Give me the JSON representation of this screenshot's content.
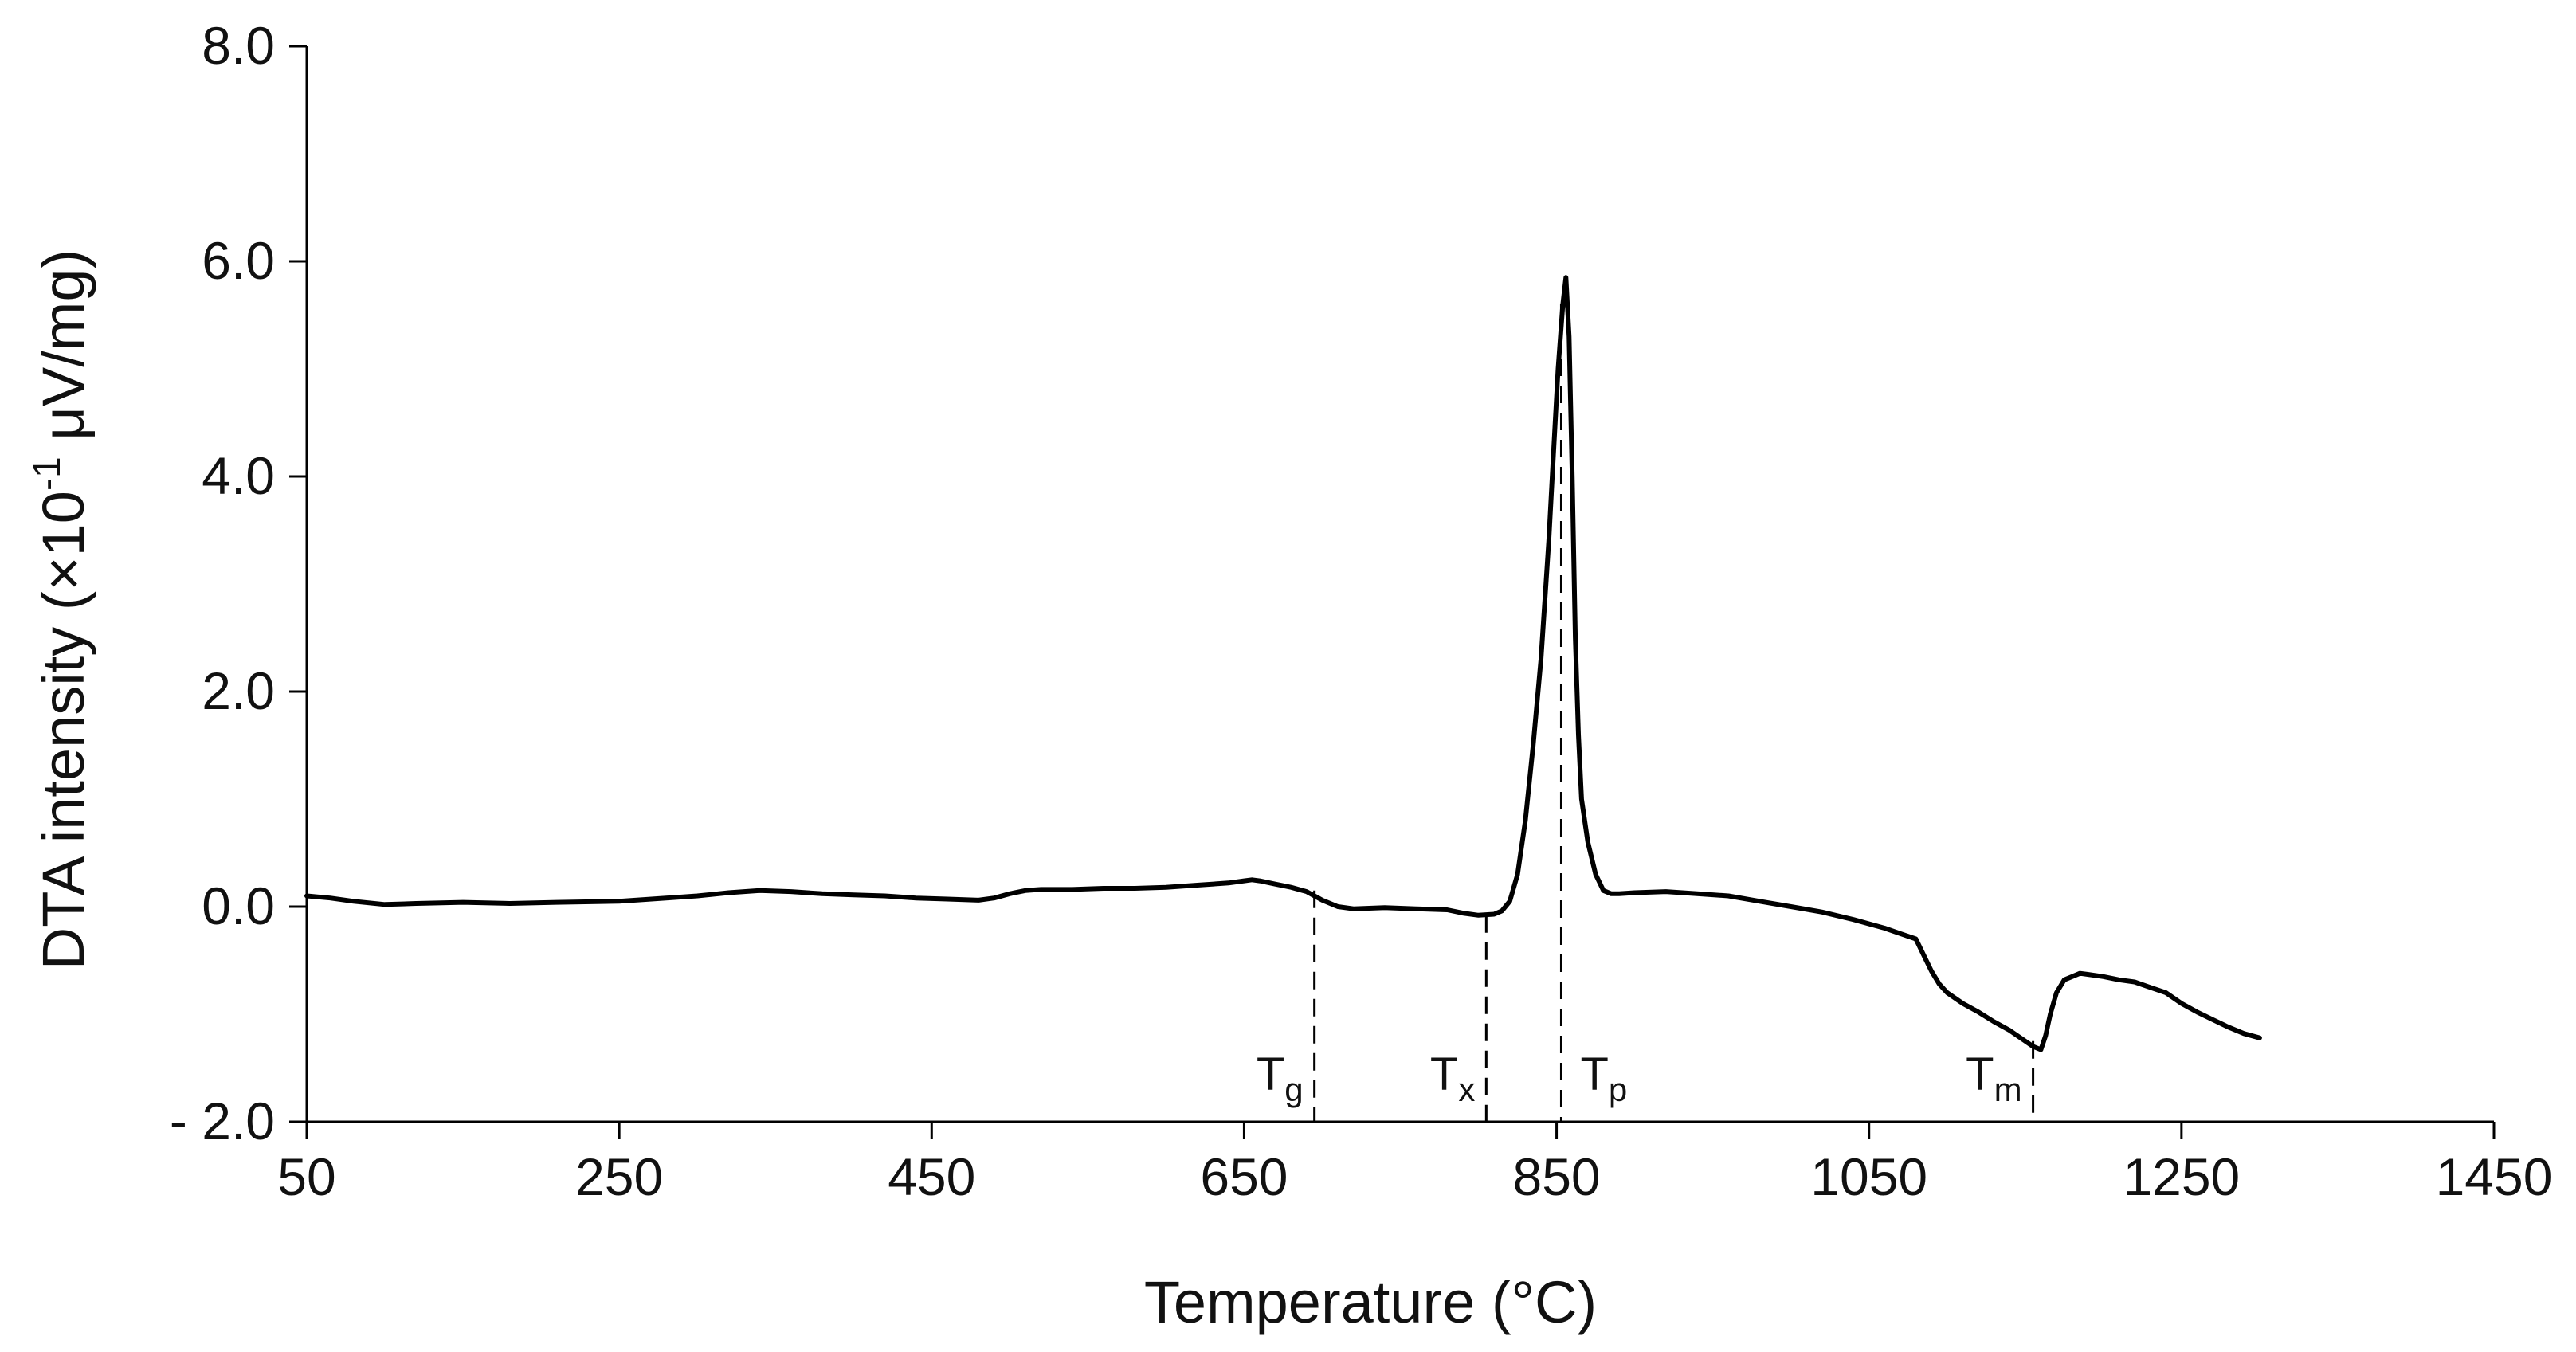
{
  "chart_data": {
    "type": "line",
    "title": "",
    "xlabel": "Temperature  (°C)",
    "ylabel_parts": {
      "before": "DTA intensity (×10",
      "superscript": "-1",
      "after": " μV/mg)"
    },
    "xlim": [
      50,
      1450
    ],
    "ylim": [
      -2.0,
      8.0
    ],
    "x_ticks": [
      50,
      250,
      450,
      650,
      850,
      1050,
      1250,
      1450
    ],
    "x_tick_labels": [
      "50",
      "250",
      "450",
      "650",
      "850",
      "1050",
      "1250",
      "1450"
    ],
    "y_ticks": [
      -2.0,
      0.0,
      2.0,
      4.0,
      6.0,
      8.0
    ],
    "y_tick_labels": [
      "- 2.0",
      "0.0",
      "2.0",
      "4.0",
      "6.0",
      "8.0"
    ],
    "grid": false,
    "legend": "none",
    "series": [
      {
        "color": "#000000",
        "x": [
          50,
          65,
          80,
          100,
          120,
          150,
          180,
          210,
          250,
          280,
          300,
          320,
          340,
          360,
          380,
          400,
          420,
          440,
          460,
          480,
          490,
          500,
          510,
          520,
          540,
          560,
          580,
          600,
          620,
          640,
          650,
          655,
          660,
          670,
          680,
          690,
          700,
          710,
          720,
          740,
          760,
          780,
          790,
          800,
          810,
          815,
          820,
          825,
          830,
          835,
          840,
          845,
          848,
          851,
          854,
          856,
          858,
          860,
          862,
          864,
          866,
          870,
          875,
          880,
          885,
          890,
          900,
          920,
          940,
          960,
          980,
          1000,
          1020,
          1040,
          1060,
          1070,
          1080,
          1085,
          1090,
          1095,
          1100,
          1110,
          1120,
          1130,
          1140,
          1150,
          1155,
          1160,
          1163,
          1166,
          1170,
          1175,
          1180,
          1185,
          1190,
          1200,
          1210,
          1220,
          1230,
          1240,
          1250,
          1260,
          1270,
          1280,
          1290,
          1300
        ],
        "y": [
          0.1,
          0.08,
          0.05,
          0.02,
          0.03,
          0.04,
          0.03,
          0.04,
          0.05,
          0.08,
          0.1,
          0.13,
          0.15,
          0.14,
          0.12,
          0.11,
          0.1,
          0.08,
          0.07,
          0.06,
          0.08,
          0.12,
          0.15,
          0.16,
          0.16,
          0.17,
          0.17,
          0.18,
          0.2,
          0.22,
          0.24,
          0.25,
          0.24,
          0.21,
          0.18,
          0.14,
          0.06,
          0.0,
          -0.02,
          -0.01,
          -0.02,
          -0.03,
          -0.06,
          -0.08,
          -0.07,
          -0.04,
          0.05,
          0.3,
          0.8,
          1.5,
          2.3,
          3.4,
          4.2,
          5.0,
          5.6,
          5.85,
          5.3,
          4.0,
          2.5,
          1.6,
          1.0,
          0.6,
          0.3,
          0.15,
          0.12,
          0.12,
          0.13,
          0.14,
          0.12,
          0.1,
          0.05,
          0.0,
          -0.05,
          -0.12,
          -0.2,
          -0.25,
          -0.3,
          -0.45,
          -0.6,
          -0.72,
          -0.8,
          -0.9,
          -0.98,
          -1.07,
          -1.15,
          -1.25,
          -1.3,
          -1.33,
          -1.2,
          -1.0,
          -0.8,
          -0.68,
          -0.65,
          -0.62,
          -0.63,
          -0.65,
          -0.68,
          -0.7,
          -0.75,
          -0.8,
          -0.9,
          -0.98,
          -1.05,
          -1.12,
          -1.18,
          -1.22
        ]
      }
    ],
    "markers": [
      {
        "x": 695,
        "label": "T",
        "sub": "g",
        "y_top": 0.15
      },
      {
        "x": 805,
        "label": "T",
        "sub": "x",
        "y_top": -0.08
      },
      {
        "x": 853,
        "label": "T",
        "sub": "p",
        "y_top": 5.6
      },
      {
        "x": 1155,
        "label": "T",
        "sub": "m",
        "y_top": -1.25
      }
    ]
  }
}
